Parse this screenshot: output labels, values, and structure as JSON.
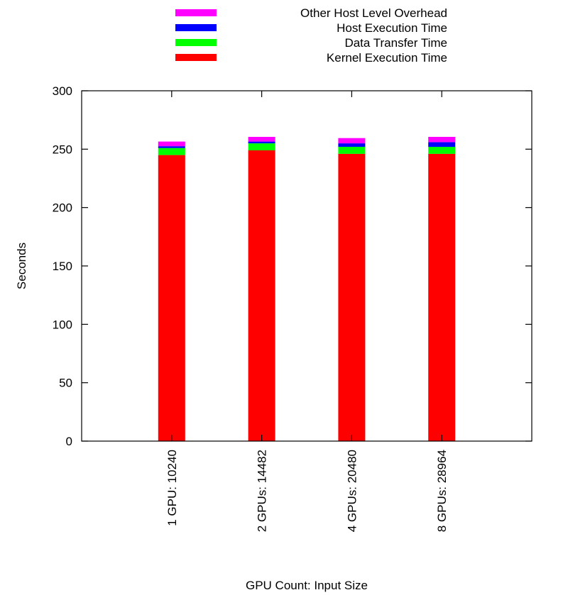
{
  "chart_data": {
    "type": "bar",
    "stacked": true,
    "categories": [
      "1 GPU: 10240",
      "2 GPUs: 14482",
      "4 GPUs: 20480",
      "8 GPUs: 28964"
    ],
    "series": [
      {
        "name": "Kernel Execution Time",
        "color": "#ff0000",
        "values": [
          245,
          249,
          246,
          246
        ]
      },
      {
        "name": "Data Transfer Time",
        "color": "#00ff00",
        "values": [
          6,
          6,
          6,
          6
        ]
      },
      {
        "name": "Host Execution Time",
        "color": "#0000ff",
        "values": [
          1.5,
          1.5,
          3,
          4
        ]
      },
      {
        "name": "Other Host Level Overhead",
        "color": "#ff00ff",
        "values": [
          4,
          4,
          4.5,
          4.5
        ]
      }
    ],
    "xlabel": "GPU Count: Input Size",
    "ylabel": "Seconds",
    "ylim": [
      0,
      300
    ],
    "yticks": [
      "0",
      "50",
      "100",
      "150",
      "200",
      "250",
      "300"
    ],
    "grid": false,
    "legend_position": "top"
  }
}
